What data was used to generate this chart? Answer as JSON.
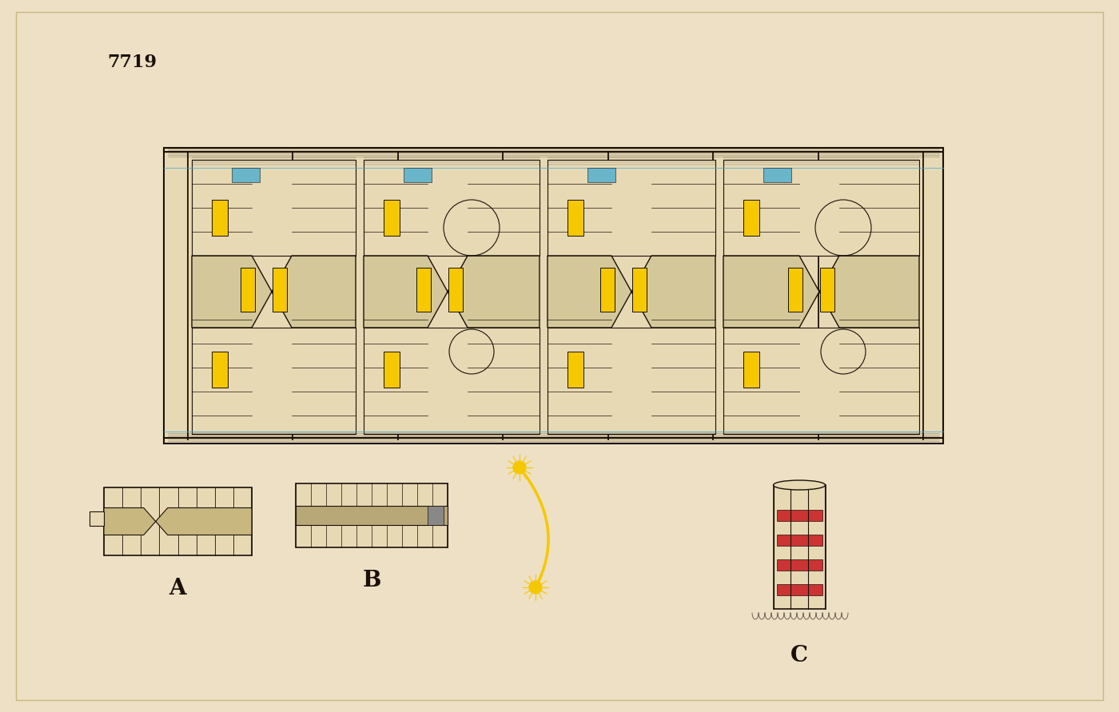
{
  "bg_color": "#EDE0C4",
  "paper_color": "#E8D9B5",
  "line_color": "#1a1008",
  "yellow_color": "#F5C800",
  "blue_color": "#4AACCF",
  "red_color": "#CC3333",
  "label_number": "7719",
  "label_A": "A",
  "label_B": "B",
  "label_C": "C",
  "title_fontsize": 16,
  "label_fontsize": 18
}
